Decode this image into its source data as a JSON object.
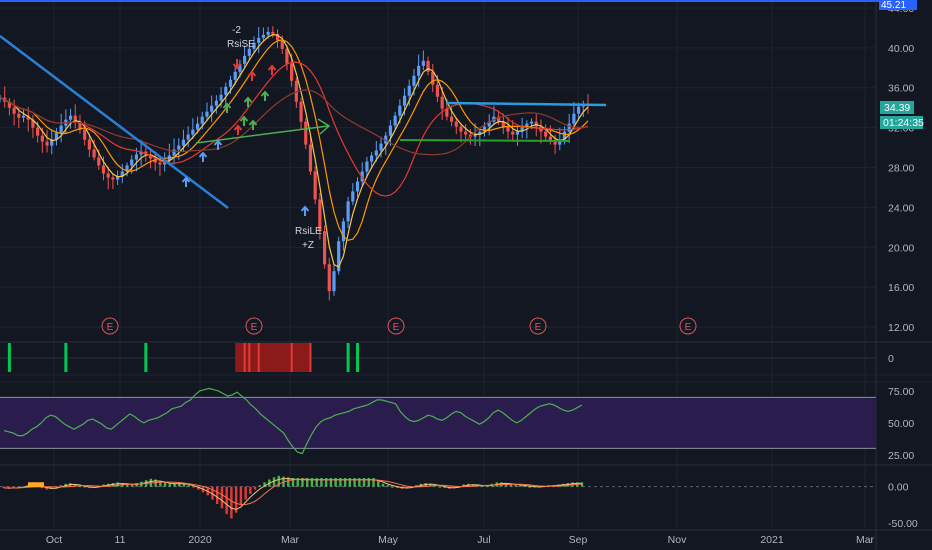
{
  "chart_data": [
    {
      "type": "candlestick",
      "panel": "price",
      "price_ticks": [
        "44.00",
        "40.00",
        "36.00",
        "32.00",
        "28.00",
        "24.00",
        "20.00",
        "16.00",
        "12.00"
      ],
      "price_tick_values": [
        44,
        40,
        36,
        32,
        28,
        24,
        20,
        16,
        12
      ],
      "ylim": [
        10.5,
        44.8
      ],
      "top_badge": "45.21",
      "last_price": "34.39",
      "countdown": "01:24:35",
      "x_labels": [
        "Oct",
        "11",
        "2020",
        "Mar",
        "May",
        "Jul",
        "Sep",
        "Nov",
        "2021",
        "Mar"
      ],
      "earnings_markers": [
        "E",
        "E",
        "E",
        "E",
        "E"
      ],
      "annotations": {
        "short_signal_count": "-2",
        "short_signal_label": "RsiSE",
        "long_signal_label": "RsiLE",
        "long_signal_count": "+Z"
      },
      "series": [
        {
          "name": "",
          "close": [
            35,
            34.6,
            34,
            33.4,
            33,
            33.2,
            32.8,
            32,
            31.2,
            30.6,
            30.2,
            30.8,
            31.5,
            32.2,
            32.8,
            33.2,
            32.6,
            31.8,
            30.8,
            29.8,
            29,
            28.2,
            27.4,
            27,
            26.8,
            27.1,
            27.6,
            28.2,
            28.8,
            29.3,
            29.6,
            29.3,
            28.9,
            28.5,
            28.3,
            28.7,
            29.2,
            29.8,
            30.2,
            30.8,
            31.3,
            31.8,
            32.4,
            33.1,
            33.6,
            34.2,
            34.7,
            35.3,
            36.1,
            36.8,
            37.6,
            38.4,
            39.2,
            39.9,
            40.5,
            41,
            41.3,
            41.6,
            41.4,
            40.8,
            39.9,
            38.4,
            36.7,
            34.6,
            32.6,
            30.3,
            27.6,
            24.8,
            21.6,
            18.3,
            15.6,
            17.6,
            20.6,
            22.6,
            24.6,
            25.6,
            26.6,
            27.6,
            28.6,
            29.2,
            29.7,
            30.4,
            31.2,
            32.2,
            33.2,
            34.2,
            35.2,
            36.2,
            37.2,
            38.2,
            38.7,
            37.6,
            36.3,
            35.1,
            33.9,
            33.1,
            32.6,
            32.1,
            31.6,
            31.3,
            31.1,
            31.3,
            31.6,
            32.1,
            32.6,
            33.1,
            32.6,
            32.1,
            31.6,
            31.3,
            31.6,
            32.1,
            32.4,
            32.6,
            32.1,
            31.6,
            31.1,
            30.6,
            30.3,
            30.8,
            31.6,
            32.4,
            33.4,
            34.1,
            34.4,
            34.39
          ]
        }
      ]
    },
    {
      "type": "bar",
      "panel": "signal_strip",
      "y_tick": "0",
      "green_marks_at_bar": [
        2,
        14,
        31,
        74,
        76
      ],
      "red_zone_bars": [
        50,
        66
      ]
    },
    {
      "type": "line",
      "panel": "rsi",
      "y_ticks": [
        "75.00",
        "50.00",
        "25.00"
      ],
      "y_tick_values": [
        75,
        50,
        25
      ],
      "ylim": [
        17,
        82
      ],
      "band": [
        30,
        70
      ],
      "series": [
        {
          "name": "",
          "values": [
            44,
            43,
            42,
            40,
            40,
            42,
            45,
            47,
            50,
            54,
            56,
            55,
            52,
            49,
            47,
            45,
            47,
            49,
            52,
            53,
            51,
            49,
            46,
            45,
            48,
            51,
            54,
            57,
            55,
            52,
            50,
            52,
            53,
            54,
            56,
            58,
            61,
            62,
            63,
            66,
            68,
            72,
            75,
            76,
            77,
            76,
            75,
            73,
            71,
            72,
            74,
            71,
            68,
            64,
            61,
            57,
            54,
            51,
            48,
            45,
            42,
            36,
            31,
            27,
            26,
            34,
            41,
            47,
            51,
            53,
            54,
            56,
            57,
            58,
            59,
            61,
            62,
            63,
            64,
            66,
            68,
            68,
            67,
            66,
            65,
            59,
            55,
            52,
            51,
            52,
            54,
            56,
            55,
            53,
            52,
            54,
            57,
            59,
            58,
            55,
            53,
            51,
            49,
            51,
            54,
            58,
            60,
            58,
            55,
            52,
            50,
            52,
            55,
            58,
            61,
            63,
            64,
            65,
            64,
            62,
            60,
            59,
            60,
            62,
            64
          ]
        }
      ]
    },
    {
      "type": "bar",
      "panel": "macd",
      "y_ticks": [
        "0.00",
        "-50.00"
      ],
      "y_tick_values": [
        0,
        -50
      ],
      "ylim": [
        -60,
        30
      ],
      "series": [
        {
          "name": "",
          "values": [
            -2,
            -3,
            -2,
            -1,
            0,
            2,
            3,
            1,
            -2,
            -4,
            -3,
            -1,
            2,
            4,
            5,
            3,
            1,
            -1,
            -2,
            -1,
            1,
            3,
            4,
            5,
            6,
            5,
            4,
            3,
            5,
            7,
            9,
            11,
            10,
            8,
            6,
            4,
            5,
            6,
            4,
            2,
            -1,
            -4,
            -8,
            -12,
            -18,
            -24,
            -30,
            -38,
            -44,
            -36,
            -26,
            -18,
            -10,
            -4,
            2,
            6,
            10,
            13,
            15,
            14,
            13,
            12,
            12,
            12,
            12,
            12,
            12,
            12,
            12,
            12,
            12,
            12,
            12,
            12,
            12,
            12,
            12,
            12,
            12,
            8,
            4,
            2,
            0,
            -2,
            -3,
            -2,
            0,
            2,
            4,
            5,
            4,
            2,
            0,
            -2,
            -3,
            -1,
            1,
            3,
            4,
            3,
            2,
            1,
            2,
            4,
            6,
            6,
            5,
            4,
            3,
            2,
            1,
            0,
            -1,
            0,
            1,
            2,
            2,
            3,
            4,
            5,
            6,
            6,
            6
          ]
        }
      ]
    }
  ]
}
